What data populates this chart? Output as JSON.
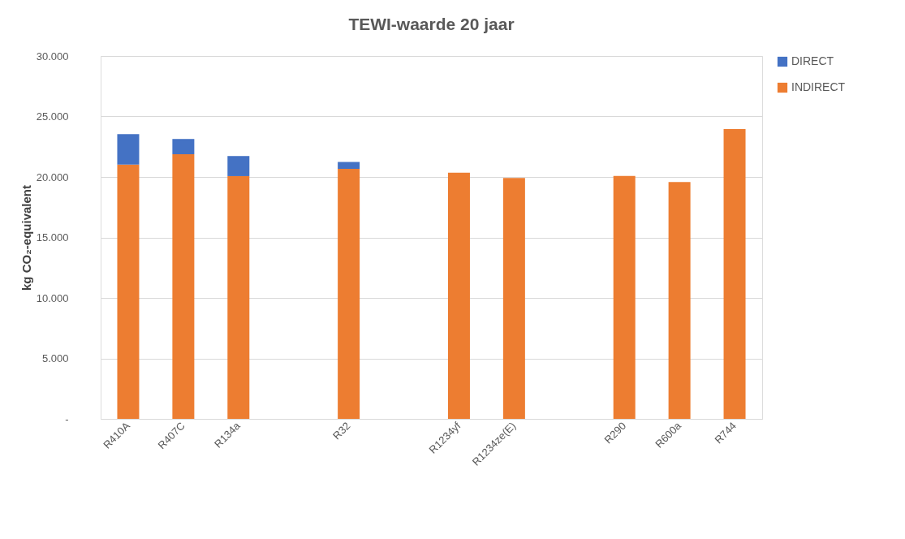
{
  "chart_data": {
    "type": "bar",
    "title": "TEWI-waarde 20 jaar",
    "ylabel": "kg CO₂-equivalent",
    "categories": [
      "R410A",
      "R407C",
      "R134a",
      null,
      "R32",
      null,
      "R1234yf",
      "R1234ze(E)",
      null,
      "R290",
      "R600a",
      "R744"
    ],
    "stacked": true,
    "series": [
      {
        "name": "INDIRECT",
        "color": "#ed7d31",
        "values": [
          21030,
          21880,
          20070,
          null,
          20670,
          null,
          20350,
          19910,
          null,
          20080,
          19580,
          23960
        ]
      },
      {
        "name": "DIRECT",
        "color": "#4472c4",
        "values": [
          2510,
          1260,
          1660,
          null,
          570,
          null,
          null,
          null,
          null,
          null,
          null,
          null
        ]
      }
    ],
    "ylim": [
      0,
      30000
    ],
    "yticks": [
      {
        "value": 0,
        "label": "-"
      },
      {
        "value": 5000,
        "label": "5.000"
      },
      {
        "value": 10000,
        "label": "10.000"
      },
      {
        "value": 15000,
        "label": "15.000"
      },
      {
        "value": 20000,
        "label": "20.000"
      },
      {
        "value": 25000,
        "label": "25.000"
      },
      {
        "value": 30000,
        "label": "30.000"
      }
    ],
    "grid": "y",
    "legend": "right"
  }
}
